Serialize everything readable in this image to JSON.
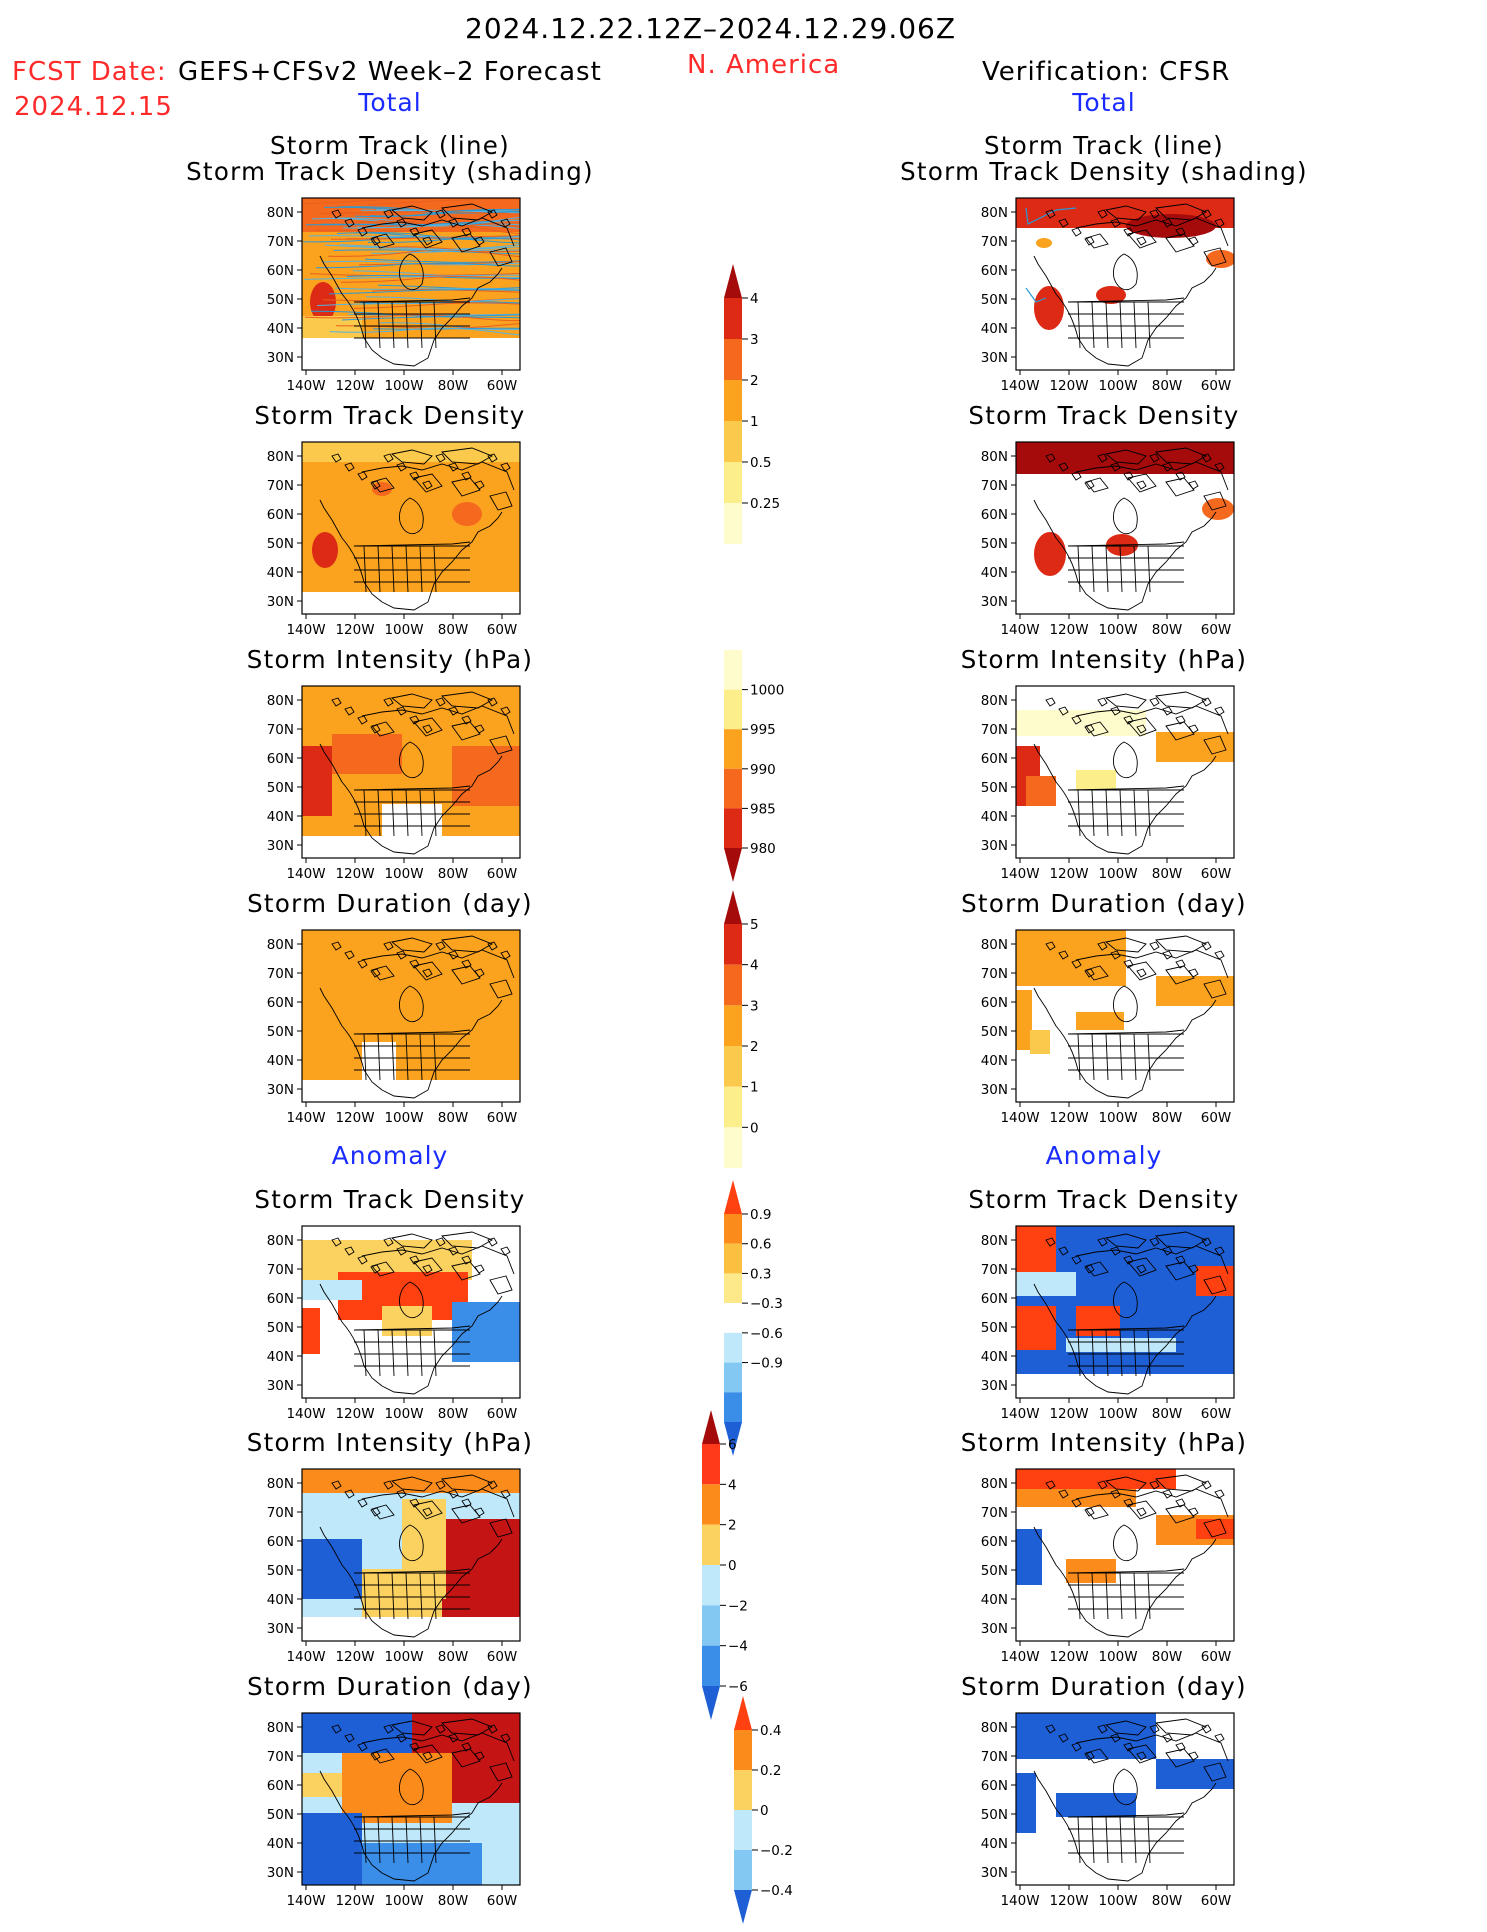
{
  "header": {
    "date_range": "2024.12.22.12Z–2024.12.29.06Z",
    "fcst_label": "FCST Date:",
    "forecast_name": "GEFS+CFSv2 Week–2 Forecast",
    "region": "N. America",
    "fcst_date": "2024.12.15",
    "verification": "Verification: CFSR"
  },
  "columns": {
    "left": {
      "total": "Total",
      "anomaly": "Anomaly"
    },
    "right": {
      "total": "Total",
      "anomaly": "Anomaly"
    }
  },
  "panel_titles": {
    "track_line": "Storm Track (line)",
    "track_density_shading": "Storm Track Density (shading)",
    "density": "Storm Track Density",
    "intensity": "Storm Intensity (hPa)",
    "duration": "Storm Duration (day)"
  },
  "axes": {
    "lat_labels": [
      "80N",
      "70N",
      "60N",
      "50N",
      "40N",
      "30N"
    ],
    "lon_labels": [
      "140W",
      "120W",
      "100W",
      "80W",
      "60W"
    ]
  },
  "colorbars": {
    "density_total": {
      "labels": [
        "4",
        "3",
        "2",
        "1",
        "0.5",
        "0.25"
      ],
      "colors": [
        "#a50b0b",
        "#dc2a14",
        "#f5691e",
        "#fba21f",
        "#fbc94b",
        "#fdee8c",
        "#fefbcd"
      ]
    },
    "intensity_total": {
      "labels": [
        "1000",
        "995",
        "990",
        "985",
        "980"
      ],
      "colors": [
        "#fefbcd",
        "#fdee8c",
        "#fba21f",
        "#f5691e",
        "#dc2a14",
        "#a50b0b"
      ]
    },
    "duration_total": {
      "labels": [
        "5",
        "4",
        "3",
        "2",
        "1",
        "0"
      ],
      "colors": [
        "#a50b0b",
        "#dc2a14",
        "#f5691e",
        "#fba21f",
        "#fbc94b",
        "#fdee8c",
        "#fefbcd"
      ]
    },
    "density_anom": {
      "labels": [
        "0.9",
        "0.6",
        "0.3",
        "−0.3",
        "−0.6",
        "−0.9"
      ],
      "colors": [
        "#ff4010",
        "#fb8c1c",
        "#fbc040",
        "#fde98a",
        "#ffffff",
        "#bfe9fb",
        "#83c7f3",
        "#3a8ee8",
        "#1e5fd6"
      ]
    },
    "intensity_anom": {
      "labels": [
        "6",
        "4",
        "2",
        "0",
        "−2",
        "−4",
        "−6"
      ],
      "colors": [
        "#a50b0b",
        "#ff3a1a",
        "#fb8c1c",
        "#fbd160",
        "#bfe9fb",
        "#83c7f3",
        "#3a8ee8",
        "#1e5fd6"
      ]
    },
    "duration_anom": {
      "labels": [
        "0.4",
        "0.2",
        "0",
        "−0.2",
        "−0.4"
      ],
      "colors": [
        "#ff4010",
        "#fb8c1c",
        "#fbd160",
        "#bfe9fb",
        "#83c7f3",
        "#1e5fd6"
      ]
    }
  }
}
